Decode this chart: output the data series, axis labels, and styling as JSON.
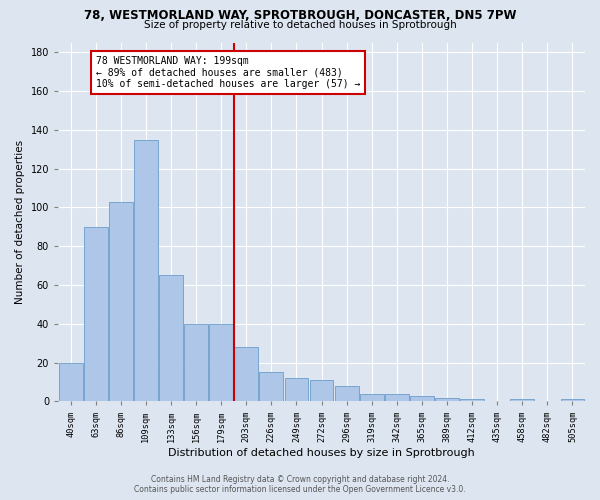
{
  "title1": "78, WESTMORLAND WAY, SPROTBROUGH, DONCASTER, DN5 7PW",
  "title2": "Size of property relative to detached houses in Sprotbrough",
  "xlabel": "Distribution of detached houses by size in Sprotbrough",
  "ylabel": "Number of detached properties",
  "categories": [
    "40sqm",
    "63sqm",
    "86sqm",
    "109sqm",
    "133sqm",
    "156sqm",
    "179sqm",
    "203sqm",
    "226sqm",
    "249sqm",
    "272sqm",
    "296sqm",
    "319sqm",
    "342sqm",
    "365sqm",
    "389sqm",
    "412sqm",
    "435sqm",
    "458sqm",
    "482sqm",
    "505sqm"
  ],
  "values": [
    20,
    90,
    103,
    135,
    65,
    40,
    40,
    28,
    15,
    12,
    11,
    8,
    4,
    4,
    3,
    2,
    1,
    0,
    1,
    0,
    1
  ],
  "bar_color": "#aec6e8",
  "bar_edge_color": "#6b9ecc",
  "background_color": "#dde6f0",
  "vline_index": 7,
  "vline_color": "#cc0000",
  "annotation_lines": [
    "78 WESTMORLAND WAY: 199sqm",
    "← 89% of detached houses are smaller (483)",
    "10% of semi-detached houses are larger (57) →"
  ],
  "annotation_box_color": "#cc0000",
  "footer_line1": "Contains HM Land Registry data © Crown copyright and database right 2024.",
  "footer_line2": "Contains public sector information licensed under the Open Government Licence v3.0.",
  "ylim": [
    0,
    185
  ],
  "yticks": [
    0,
    20,
    40,
    60,
    80,
    100,
    120,
    140,
    160,
    180
  ]
}
